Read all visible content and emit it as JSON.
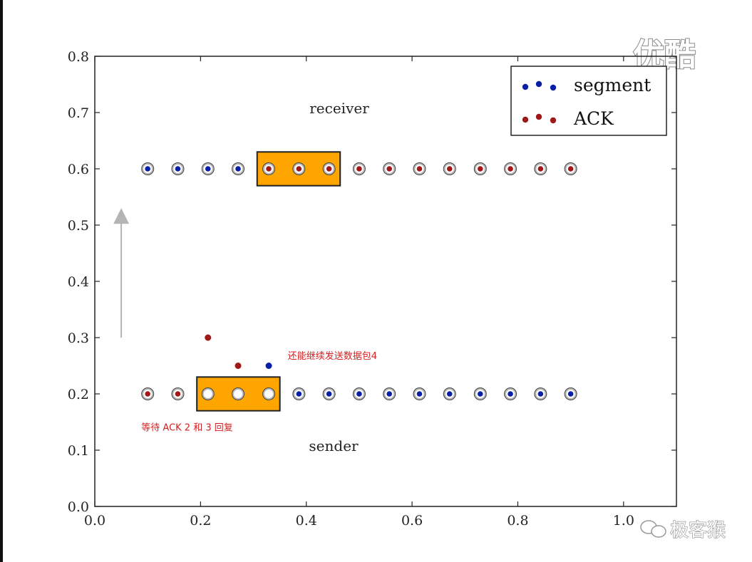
{
  "chart_data": {
    "type": "scatter",
    "xlim": [
      0.0,
      1.1
    ],
    "ylim": [
      0.0,
      0.8
    ],
    "x_ticks": [
      "0.0",
      "0.2",
      "0.4",
      "0.6",
      "0.8",
      "1.0"
    ],
    "y_ticks": [
      "0.0",
      "0.1",
      "0.2",
      "0.3",
      "0.4",
      "0.5",
      "0.6",
      "0.7",
      "0.8"
    ],
    "grid": false,
    "legend": {
      "placement": "top-right",
      "entries": [
        {
          "name": "segment",
          "color": "#0a1fa8"
        },
        {
          "name": "ACK",
          "color": "#a01818"
        }
      ]
    },
    "receiver": {
      "label": "receiver",
      "y": 0.6,
      "x": [
        0.1,
        0.157,
        0.214,
        0.271,
        0.329,
        0.386,
        0.443,
        0.5,
        0.557,
        0.614,
        0.671,
        0.729,
        0.786,
        0.843,
        0.9
      ],
      "kinds": [
        "segment",
        "segment",
        "segment",
        "segment",
        "ack",
        "ack",
        "ack",
        "ack",
        "ack",
        "ack",
        "ack",
        "ack",
        "ack",
        "ack",
        "ack"
      ],
      "window": {
        "x_start": 0.307,
        "x_end": 0.464
      }
    },
    "sender": {
      "label": "sender",
      "y": 0.2,
      "x": [
        0.1,
        0.157,
        0.214,
        0.271,
        0.329,
        0.386,
        0.443,
        0.5,
        0.557,
        0.614,
        0.671,
        0.729,
        0.786,
        0.843,
        0.9
      ],
      "kinds": [
        "ack",
        "ack",
        "empty",
        "empty",
        "empty",
        "segment",
        "segment",
        "segment",
        "segment",
        "segment",
        "segment",
        "segment",
        "segment",
        "segment",
        "segment"
      ],
      "window": {
        "x_start": 0.193,
        "x_end": 0.35
      }
    },
    "in_flight": [
      {
        "x": 0.214,
        "y": 0.3,
        "kind": "ack"
      },
      {
        "x": 0.271,
        "y": 0.25,
        "kind": "ack"
      },
      {
        "x": 0.329,
        "y": 0.25,
        "kind": "segment"
      }
    ],
    "arrow": {
      "x": 0.05,
      "y_from": 0.3,
      "y_to": 0.53
    },
    "annotations": [
      {
        "text": "还能继续发送数据包4",
        "x": 0.365,
        "y": 0.262
      },
      {
        "text": "等待 ACK 2 和 3 回复",
        "x": 0.088,
        "y": 0.135
      }
    ],
    "colors": {
      "segment": "#0a1fa8",
      "ack": "#a01818",
      "window_fill": "#ffa500",
      "arrow": "#b4b4b4"
    }
  },
  "watermarks": {
    "top_right": "优酷",
    "bottom_right": "极客猴"
  }
}
